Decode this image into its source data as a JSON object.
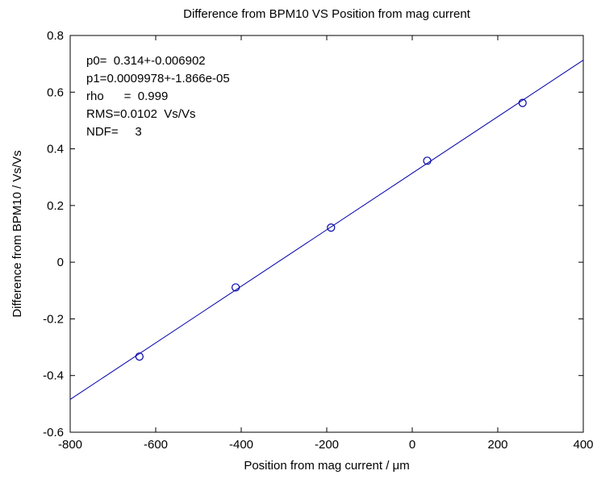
{
  "chart_data": {
    "type": "scatter",
    "title": "Difference from BPM10 VS Position from mag current",
    "xlabel": "Position from mag current / μm",
    "ylabel": "Difference from BPM10 / Vs/Vs",
    "xlim": [
      -800,
      400
    ],
    "ylim": [
      -0.6,
      0.8
    ],
    "xticks": [
      "-800",
      "-600",
      "-400",
      "-200",
      "0",
      "200",
      "400"
    ],
    "yticks": [
      "-0.6",
      "-0.4",
      "-0.2",
      "0",
      "0.2",
      "0.4",
      "0.6",
      "0.8"
    ],
    "grid": false,
    "series": [
      {
        "marker": "circle",
        "color": "#0000aa",
        "x": [
          -638,
          -413,
          -190,
          35,
          258
        ],
        "y": [
          -0.333,
          -0.089,
          0.122,
          0.358,
          0.562
        ]
      }
    ],
    "fit_line": {
      "color": "#0000aa",
      "intercept": 0.314,
      "slope": 0.0009978,
      "x_range": [
        -800,
        400
      ]
    },
    "annotations": [
      "p0=  0.314+-0.006902",
      "p1=0.0009978+-1.866e-05",
      "rho      =  0.999",
      "RMS=0.0102  Vs/Vs",
      "NDF=     3"
    ]
  }
}
